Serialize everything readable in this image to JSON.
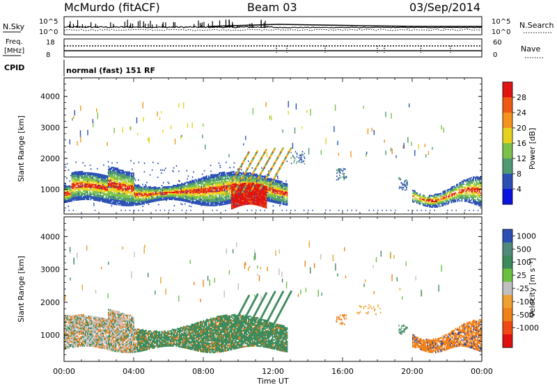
{
  "header": {
    "station": "McMurdo (fitACF)",
    "beam": "Beam 03",
    "date": "03/Sep/2014"
  },
  "noise_panel": {
    "left_label": "N.Sky",
    "right_label": "N.Search",
    "left_ticks": [
      "10^5",
      "10^0"
    ],
    "right_ticks": [
      "10^5",
      "10^0"
    ]
  },
  "freq_panel": {
    "left_label_line1": "Freq.",
    "left_label_line2": "[MHz]",
    "right_label": "Nave",
    "left_ticks": [
      "18",
      "8"
    ],
    "right_ticks": [
      "60",
      "0"
    ]
  },
  "cpid": {
    "label": "CPID",
    "value": "normal (fast) 151 RF"
  },
  "chart_data": [
    {
      "type": "heatmap",
      "title": "",
      "xlabel": "",
      "ylabel": "Slant Range [km]",
      "xlim": [
        0,
        24
      ],
      "ylim": [
        200,
        4600
      ],
      "y_ticks": [
        "1000",
        "2000",
        "3000",
        "4000"
      ],
      "colorbar": {
        "label": "Power [dB]",
        "ticks": [
          "4",
          "8",
          "12",
          "16",
          "20",
          "24",
          "28"
        ],
        "colors": [
          "#0a14e0",
          "#2a4fb5",
          "#4f9a70",
          "#7cc24a",
          "#e6d21e",
          "#f5931e",
          "#ee5a14",
          "#e01410"
        ]
      }
    },
    {
      "type": "heatmap",
      "title": "",
      "xlabel": "Time UT",
      "ylabel": "Slant Range [km]",
      "xlim": [
        0,
        24
      ],
      "ylim": [
        200,
        4600
      ],
      "y_ticks": [
        "1000",
        "2000",
        "3000",
        "4000"
      ],
      "x_ticks": [
        "00:00",
        "04:00",
        "08:00",
        "12:00",
        "16:00",
        "20:00",
        "00:00"
      ],
      "colorbar": {
        "label": "Velocity [m s⁻¹]",
        "ticks": [
          "1000",
          "500",
          "100",
          "25",
          "-25",
          "-100",
          "-500",
          "-1000"
        ],
        "colors": [
          "#2a4fb5",
          "#4f8a7a",
          "#3c8a5c",
          "#6cc040",
          "#c0c0c0",
          "#f0a030",
          "#f08018",
          "#f04a14",
          "#e01010"
        ]
      }
    }
  ]
}
